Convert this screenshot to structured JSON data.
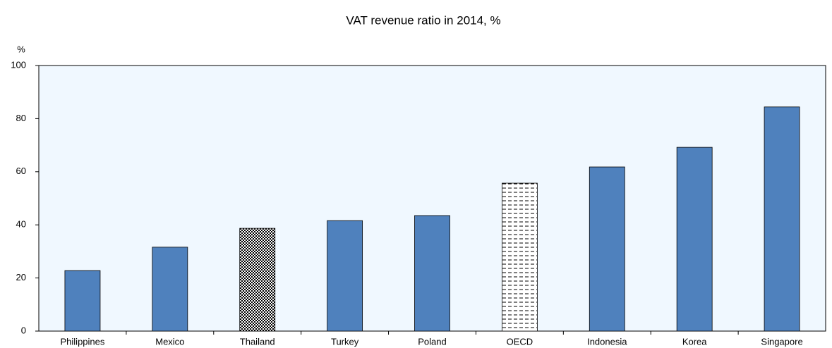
{
  "chart_data": {
    "type": "bar",
    "title": "VAT revenue ratio in 2014, %",
    "y_label": "%",
    "categories": [
      "Philippines",
      "Mexico",
      "Thailand",
      "Turkey",
      "Poland",
      "OECD",
      "Indonesia",
      "Korea",
      "Singapore"
    ],
    "values": [
      22.8,
      31.6,
      38.7,
      41.6,
      43.5,
      55.7,
      61.8,
      69.2,
      84.4
    ],
    "color": "#4f81bd",
    "patterns": [
      null,
      null,
      "checker",
      null,
      null,
      "dashes",
      null,
      null,
      null
    ],
    "background": "#f0f8ff",
    "ylim": [
      0,
      100
    ],
    "yticks": [
      0,
      20,
      40,
      60,
      80,
      100
    ],
    "grid": false
  }
}
